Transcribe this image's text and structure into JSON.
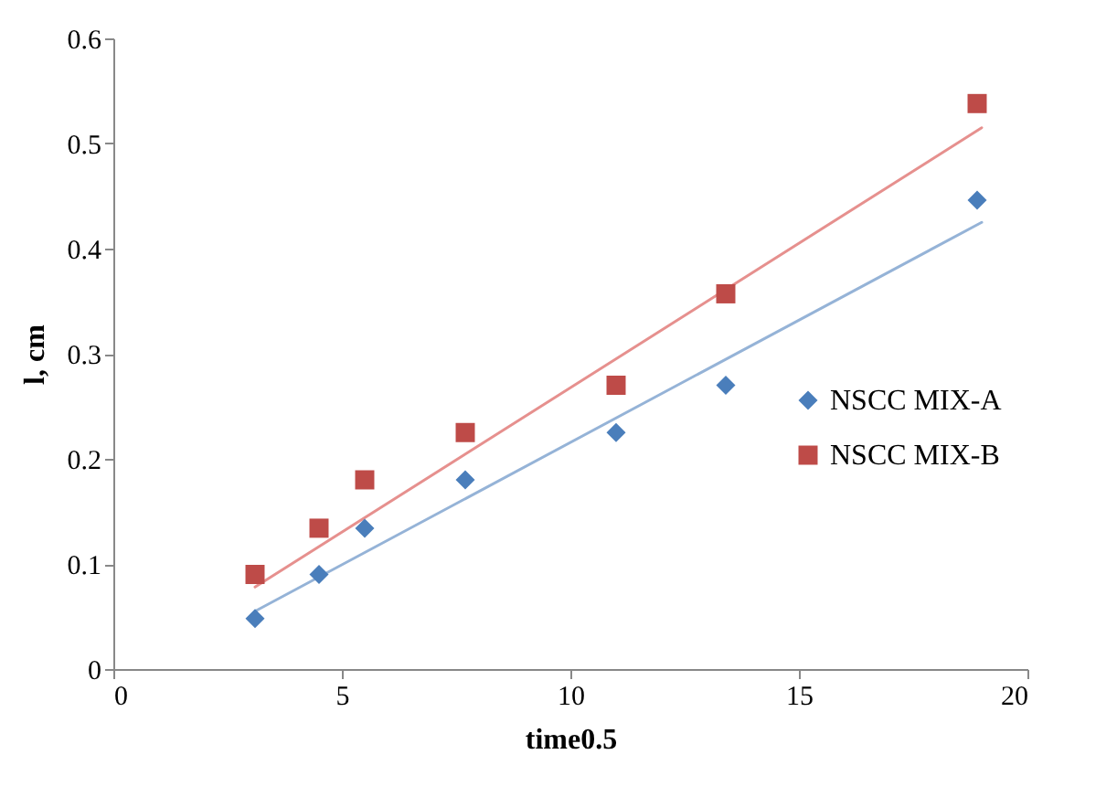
{
  "chart_data": {
    "type": "scatter",
    "xlabel": "time0.5",
    "ylabel": "l, cm",
    "xlim": [
      0,
      20
    ],
    "xticks": [
      0,
      5,
      10,
      15,
      20
    ],
    "ylim": [
      0,
      0.6
    ],
    "yticks": [
      0,
      0.1,
      0.2,
      0.3,
      0.4,
      0.5,
      0.6
    ],
    "grid": false,
    "legend": "right",
    "series": [
      {
        "name": "NSCC MIX-A",
        "marker": "diamond",
        "color": "#4a7ebb",
        "x": [
          3.1,
          4.5,
          5.5,
          7.7,
          11.0,
          13.4,
          18.9
        ],
        "values": [
          0.048,
          0.09,
          0.134,
          0.18,
          0.225,
          0.27,
          0.446
        ]
      },
      {
        "name": "NSCC MIX-B",
        "marker": "square",
        "color": "#be4b48",
        "x": [
          3.1,
          4.5,
          5.5,
          7.7,
          11.0,
          13.4,
          18.9
        ],
        "values": [
          0.09,
          0.134,
          0.18,
          0.225,
          0.27,
          0.357,
          0.538
        ]
      },
      {
        "type": "line",
        "color": "#95b3d7",
        "x": [
          3.1,
          19.0
        ],
        "values": [
          0.055,
          0.425
        ]
      },
      {
        "type": "line",
        "color": "#e6908e",
        "x": [
          3.1,
          19.0
        ],
        "values": [
          0.078,
          0.515
        ]
      }
    ]
  }
}
